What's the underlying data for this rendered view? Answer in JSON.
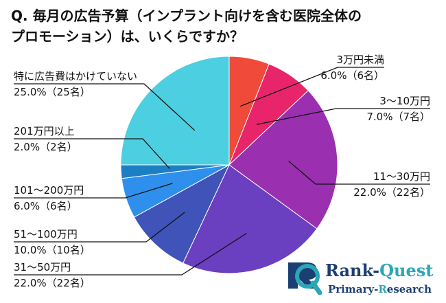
{
  "question": {
    "line1": "Q. 毎月の広告予算（インプラント向けを含む医院全体の",
    "line2": "プロモーション）は、いくらですか？"
  },
  "logo": {
    "name_part1": "Rank-",
    "name_part2": "Quest",
    "sub_part1": "Primary-",
    "sub_part2": "R",
    "sub_part3": "esearch",
    "accent_color": "#2aa6b8",
    "brand_color": "#1c3f73"
  },
  "chart_data": {
    "type": "pie",
    "title": "Q. 毎月の広告予算（インプラント向けを含む医院全体のプロモーション）は、いくらですか？",
    "start": "12 o'clock, clockwise",
    "slices": [
      {
        "label": "3万円未満",
        "value": 6.0,
        "count": "6名",
        "value_text": "6.0%（6名）",
        "color": "#f04b3a"
      },
      {
        "label": "3〜10万円",
        "value": 7.0,
        "count": "7名",
        "value_text": "7.0%（7名）",
        "color": "#e8256a"
      },
      {
        "label": "11〜30万円",
        "value": 22.0,
        "count": "22名",
        "value_text": "22.0%（22名）",
        "color": "#9a2fb0"
      },
      {
        "label": "31〜50万円",
        "value": 22.0,
        "count": "22名",
        "value_text": "22.0%（22名）",
        "color": "#6a3fc0"
      },
      {
        "label": "51〜100万円",
        "value": 10.0,
        "count": "10名",
        "value_text": "10.0%（10名）",
        "color": "#3f53b8"
      },
      {
        "label": "101〜200万円",
        "value": 6.0,
        "count": "6名",
        "value_text": "6.0%（6名）",
        "color": "#2f8fec"
      },
      {
        "label": "201万円以上",
        "value": 2.0,
        "count": "2名",
        "value_text": "2.0%（2名）",
        "color": "#1c7fc4"
      },
      {
        "label": "特に広告費はかけていない",
        "value": 25.0,
        "count": "25名",
        "value_text": "25.0%（25名）",
        "color": "#4ccfe0"
      }
    ]
  }
}
